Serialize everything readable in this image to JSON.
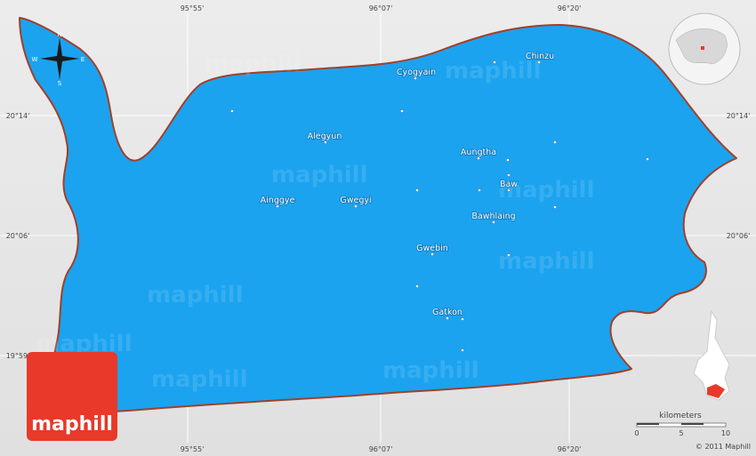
{
  "map": {
    "coordinates": {
      "top": [
        "95°55'",
        "96°07'",
        "96°20'"
      ],
      "side": [
        "20°14'",
        "20°06'",
        "19°59'"
      ]
    },
    "places": [
      "Chinzu",
      "Cyogyain",
      "Alegyun",
      "Aungtha",
      "Baw",
      "Bawhlaing",
      "Ainggye",
      "Gwegyi",
      "Gwebin",
      "Gatkon"
    ],
    "compass": {
      "n": "N",
      "s": "S",
      "e": "E",
      "w": "W"
    },
    "watermark": "maphill",
    "logo": "maphill",
    "scale": {
      "title": "kilometers",
      "ticks": [
        0,
        5,
        10
      ]
    },
    "copyright": "© 2011 Maphill"
  }
}
